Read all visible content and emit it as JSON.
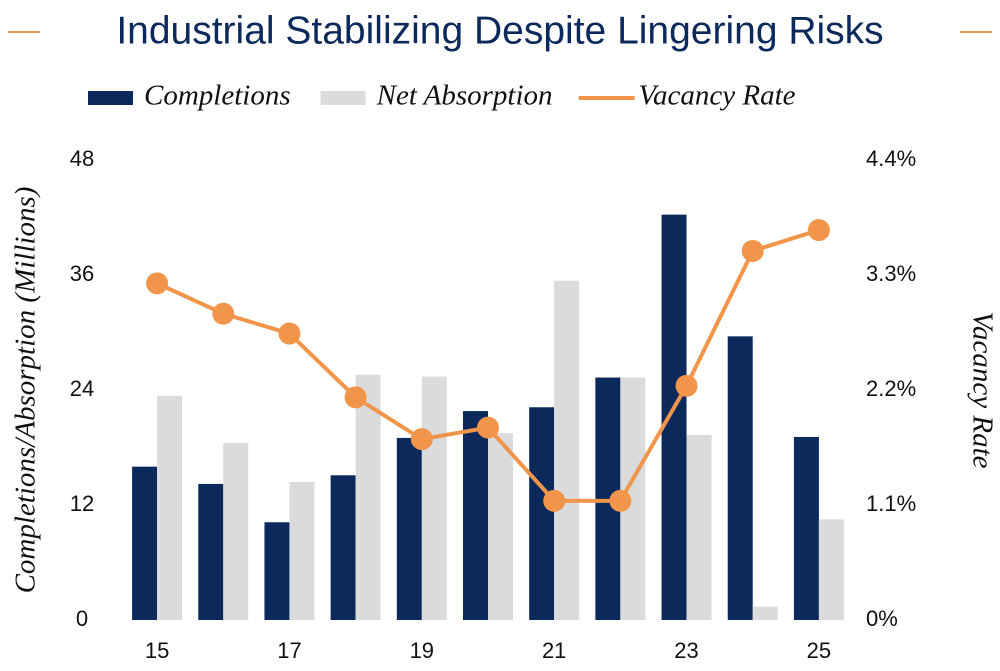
{
  "chart_data": {
    "type": "bar_line",
    "title": "Industrial Stabilizing Despite Lingering Risks",
    "y_label": "Completions/Absorption (Millions)",
    "y2_label": "Vacancy Rate",
    "categories": [
      "15",
      null,
      "17",
      null,
      "19",
      null,
      "21",
      null,
      "23",
      null,
      "25"
    ],
    "series": [
      {
        "name": "Completions",
        "color": "#0b2a5b",
        "type": "bar",
        "values": [
          16.0,
          14.2,
          10.2,
          15.1,
          19.0,
          21.8,
          22.2,
          25.3,
          42.3,
          29.6,
          19.1
        ]
      },
      {
        "name": "Net Absorption",
        "color": "#d9dbdc",
        "type": "bar",
        "values": [
          23.4,
          18.5,
          14.4,
          25.6,
          25.4,
          19.5,
          35.4,
          25.3,
          19.3,
          1.4,
          10.5
        ]
      },
      {
        "name": "Vacancy Rate",
        "color": "#f0954a",
        "type": "line",
        "axis": "y2",
        "values": [
          3.22,
          2.93,
          2.74,
          2.13,
          1.73,
          1.84,
          1.14,
          1.14,
          2.24,
          3.53,
          3.73
        ]
      }
    ],
    "ylim": [
      0,
      48
    ],
    "yticks": [
      0,
      12,
      24,
      36,
      48
    ],
    "y2lim": [
      0,
      4.4
    ],
    "y2ticks": [
      {
        "value": 0,
        "label": "0%"
      },
      {
        "value": 1.1,
        "label": "1.1%"
      },
      {
        "value": 2.2,
        "label": "2.2%"
      },
      {
        "value": 3.3,
        "label": "3.3%"
      },
      {
        "value": 4.4,
        "label": "4.4%"
      }
    ]
  }
}
